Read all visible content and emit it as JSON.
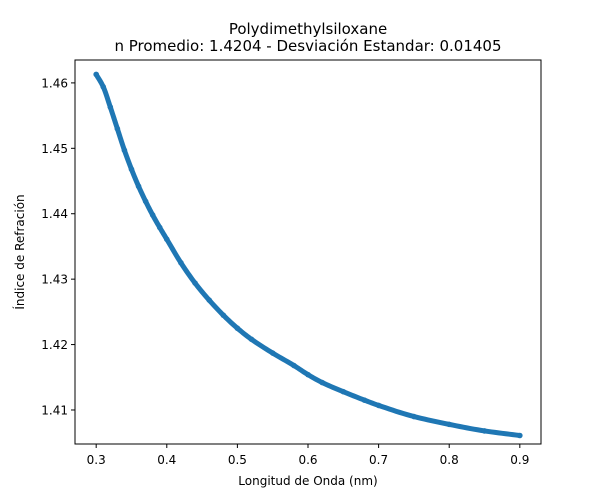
{
  "chart_data": {
    "type": "scatter",
    "title": "Polydimethylsiloxane",
    "subtitle": "n Promedio: 1.4204 - Desviación Estandar: 0.01405",
    "xlabel": "Longitud de Onda (nm)",
    "ylabel": "Índice de Refración",
    "xlim": [
      0.27,
      0.93
    ],
    "ylim": [
      1.4048,
      1.4635
    ],
    "xticks": [
      0.3,
      0.4,
      0.5,
      0.6,
      0.7,
      0.8,
      0.9
    ],
    "xtick_labels": [
      "0.3",
      "0.4",
      "0.5",
      "0.6",
      "0.7",
      "0.8",
      "0.9"
    ],
    "yticks": [
      1.41,
      1.42,
      1.43,
      1.44,
      1.45,
      1.46
    ],
    "ytick_labels": [
      "1.41",
      "1.42",
      "1.43",
      "1.44",
      "1.45",
      "1.46"
    ],
    "grid": false,
    "series": [
      {
        "color": "#1f77b4",
        "marker": "point",
        "x": [
          0.3,
          0.31,
          0.32,
          0.33,
          0.34,
          0.35,
          0.36,
          0.37,
          0.38,
          0.39,
          0.4,
          0.42,
          0.44,
          0.46,
          0.48,
          0.5,
          0.52,
          0.55,
          0.58,
          0.6,
          0.62,
          0.65,
          0.68,
          0.7,
          0.75,
          0.8,
          0.85,
          0.9
        ],
        "y": [
          1.4613,
          1.4594,
          1.4563,
          1.453,
          1.4497,
          1.4468,
          1.4442,
          1.4419,
          1.4398,
          1.4379,
          1.4361,
          1.4325,
          1.4294,
          1.4268,
          1.4245,
          1.4225,
          1.4208,
          1.4187,
          1.4168,
          1.4154,
          1.4142,
          1.4128,
          1.4115,
          1.4107,
          1.409,
          1.4078,
          1.4068,
          1.4061
        ]
      }
    ]
  }
}
